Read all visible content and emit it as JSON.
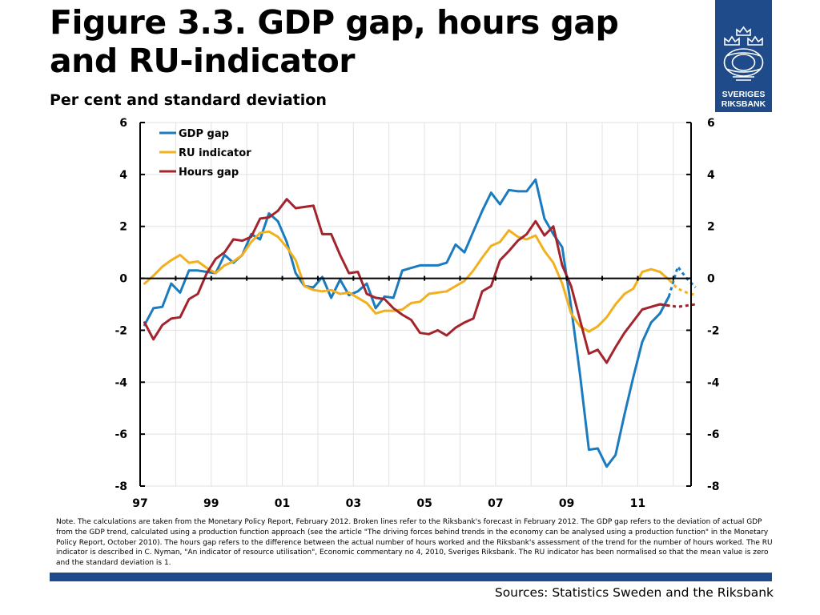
{
  "header": {
    "title": "Figure 3.3. GDP gap, hours gap and RU-indicator",
    "subtitle": "Per cent and standard deviation"
  },
  "logo": {
    "line1": "SVERIGES",
    "line2": "RIKSBANK"
  },
  "note": "Note. The calculations are taken from the Monetary Policy Report, February 2012. Broken lines refer to the Riksbank's forecast in February 2012. The GDP gap refers to the deviation of actual GDP from the GDP trend, calculated using a production function approach (see the article \"The driving forces behind trends in the economy can be analysed using a production function\" in the Monetary Policy Report, October 2010). The hours gap refers to the difference between the actual number of hours worked and the Riksbank's assessment of the trend for the number of hours worked. The RU indicator is described in C. Nyman, \"An indicator of resource utilisation\", Economic commentary no 4, 2010, Sveriges Riksbank. The RU indicator has been normalised so that the mean value is zero and the standard deviation is 1.",
  "sources": "Sources: Statistics Sweden and the Riksbank",
  "colors": {
    "gdp": "#1b7bbf",
    "ru": "#f2b01e",
    "hours": "#a3242d",
    "brand": "#1f4b8a"
  },
  "chart_data": {
    "type": "line",
    "grid": true,
    "legend_position": "top-left",
    "xlim": [
      1997,
      2012.5
    ],
    "ylim": [
      -8,
      6
    ],
    "yticks": [
      -8,
      -6,
      -4,
      -2,
      0,
      2,
      4,
      6
    ],
    "xtick_values": [
      1997,
      1999,
      2001,
      2003,
      2005,
      2007,
      2009,
      2011
    ],
    "xtick_labels": [
      "97",
      "99",
      "01",
      "03",
      "05",
      "07",
      "09",
      "11"
    ],
    "series": [
      {
        "name": "GDP gap",
        "color": "#1b7bbf",
        "start": 1997.125,
        "step": 0.25,
        "forecast_from": 2011.875,
        "values": [
          -1.8,
          -1.15,
          -1.1,
          -0.2,
          -0.55,
          0.3,
          0.3,
          0.25,
          0.2,
          0.9,
          0.6,
          0.9,
          1.7,
          1.5,
          2.5,
          2.2,
          1.4,
          0.2,
          -0.3,
          -0.35,
          0.05,
          -0.75,
          -0.05,
          -0.65,
          -0.5,
          -0.2,
          -1.15,
          -0.7,
          -0.75,
          0.3,
          0.4,
          0.5,
          0.5,
          0.5,
          0.6,
          1.3,
          1.0,
          1.8,
          2.6,
          3.3,
          2.85,
          3.4,
          3.35,
          3.35,
          3.8,
          2.3,
          1.7,
          1.2,
          -1.1,
          -3.7,
          -6.6,
          -6.55,
          -7.25,
          -6.8,
          -5.25,
          -3.8,
          -2.45,
          -1.7,
          -1.35,
          -0.7,
          0.45,
          0.0,
          -0.35
        ]
      },
      {
        "name": "RU indicator",
        "color": "#f2b01e",
        "start": 1997.125,
        "step": 0.25,
        "forecast_from": 2011.875,
        "values": [
          -0.2,
          0.1,
          0.45,
          0.7,
          0.9,
          0.6,
          0.65,
          0.4,
          0.2,
          0.5,
          0.65,
          0.9,
          1.4,
          1.75,
          1.8,
          1.6,
          1.2,
          0.7,
          -0.3,
          -0.45,
          -0.5,
          -0.45,
          -0.6,
          -0.55,
          -0.75,
          -0.95,
          -1.35,
          -1.25,
          -1.25,
          -1.2,
          -0.95,
          -0.9,
          -0.6,
          -0.55,
          -0.5,
          -0.3,
          -0.1,
          0.3,
          0.8,
          1.25,
          1.4,
          1.85,
          1.6,
          1.5,
          1.65,
          1.05,
          0.6,
          -0.2,
          -1.35,
          -1.85,
          -2.05,
          -1.85,
          -1.5,
          -1.0,
          -0.6,
          -0.4,
          0.25,
          0.35,
          0.25,
          -0.05,
          -0.4,
          -0.55,
          -0.65
        ]
      },
      {
        "name": "Hours gap",
        "color": "#a3242d",
        "start": 1997.125,
        "step": 0.25,
        "forecast_from": 2011.875,
        "values": [
          -1.7,
          -2.35,
          -1.8,
          -1.55,
          -1.5,
          -0.8,
          -0.6,
          0.2,
          0.75,
          1.0,
          1.5,
          1.45,
          1.6,
          2.3,
          2.35,
          2.6,
          3.05,
          2.7,
          2.75,
          2.8,
          1.7,
          1.7,
          0.9,
          0.2,
          0.25,
          -0.6,
          -0.75,
          -0.8,
          -1.15,
          -1.4,
          -1.6,
          -2.1,
          -2.15,
          -2.0,
          -2.2,
          -1.9,
          -1.7,
          -1.55,
          -0.5,
          -0.3,
          0.7,
          1.05,
          1.45,
          1.7,
          2.2,
          1.65,
          2.0,
          0.5,
          -0.3,
          -1.6,
          -2.9,
          -2.75,
          -3.25,
          -2.65,
          -2.1,
          -1.65,
          -1.2,
          -1.1,
          -1.0,
          -1.05,
          -1.1,
          -1.05,
          -1.0
        ]
      }
    ]
  }
}
